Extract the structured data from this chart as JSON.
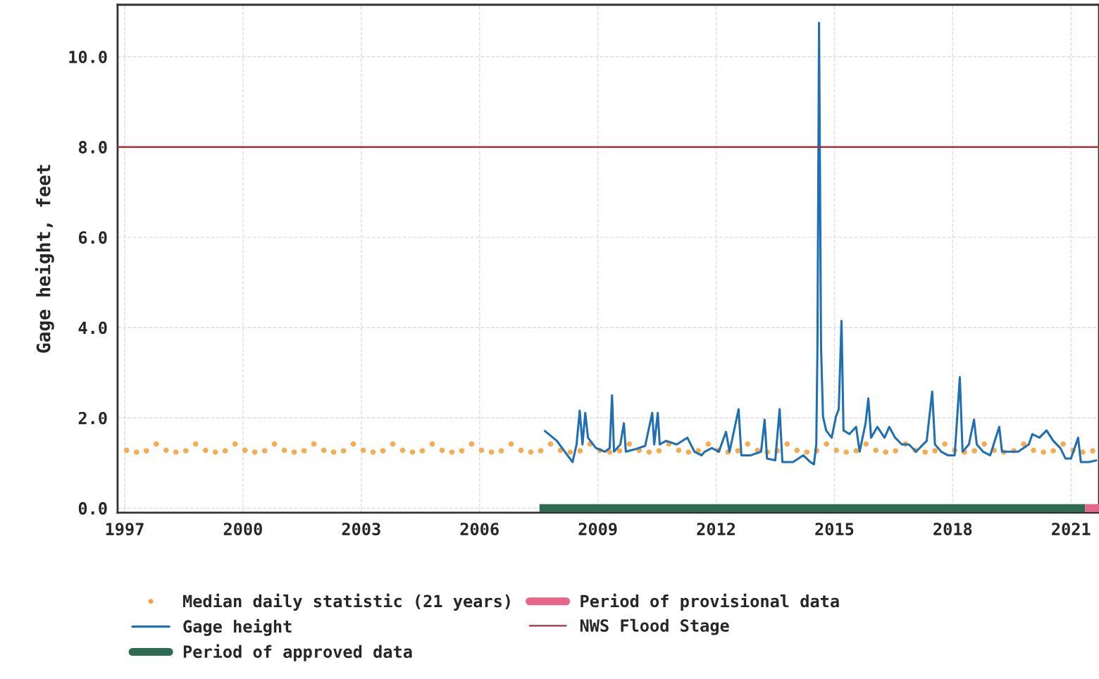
{
  "chart_data": {
    "type": "line",
    "ylabel": "Gage height, feet",
    "xlim": [
      1996.82,
      2021.71
    ],
    "xticks": [
      1997,
      2000,
      2003,
      2006,
      2009,
      2012,
      2015,
      2018,
      2021
    ],
    "ylim": [
      -0.1,
      11.15
    ],
    "yticks": [
      {
        "value": 0,
        "label": "0.0"
      },
      {
        "value": 2,
        "label": "2.0"
      },
      {
        "value": 4,
        "label": "4.0"
      },
      {
        "value": 6,
        "label": "6.0"
      },
      {
        "value": 8,
        "label": "8.0"
      },
      {
        "value": 10,
        "label": "10.0"
      }
    ],
    "grid": true,
    "legend": "bottom",
    "series": [
      {
        "name": "Median daily statistic (21 years)",
        "type": "scatter",
        "color": "#f4a23c",
        "marker": "circle",
        "x": [
          1997.05,
          1997.3,
          1997.55,
          1997.8,
          1998.05,
          1998.3,
          1998.55,
          1998.8,
          1999.05,
          1999.3,
          1999.55,
          1999.8,
          2000.05,
          2000.3,
          2000.55,
          2000.8,
          2001.05,
          2001.3,
          2001.55,
          2001.8,
          2002.05,
          2002.3,
          2002.55,
          2002.8,
          2003.05,
          2003.3,
          2003.55,
          2003.8,
          2004.05,
          2004.3,
          2004.55,
          2004.8,
          2005.05,
          2005.3,
          2005.55,
          2005.8,
          2006.05,
          2006.3,
          2006.55,
          2006.8,
          2007.05,
          2007.3,
          2007.55,
          2007.8,
          2008.05,
          2008.3,
          2008.55,
          2008.8,
          2009.05,
          2009.3,
          2009.55,
          2009.8,
          2010.05,
          2010.3,
          2010.55,
          2010.8,
          2011.05,
          2011.3,
          2011.55,
          2011.8,
          2012.05,
          2012.3,
          2012.55,
          2012.8,
          2013.05,
          2013.3,
          2013.55,
          2013.8,
          2014.05,
          2014.3,
          2014.55,
          2014.8,
          2015.05,
          2015.3,
          2015.55,
          2015.8,
          2016.05,
          2016.3,
          2016.55,
          2016.8,
          2017.05,
          2017.3,
          2017.55,
          2017.8,
          2018.05,
          2018.3,
          2018.55,
          2018.8,
          2019.05,
          2019.3,
          2019.55,
          2019.8,
          2020.05,
          2020.3,
          2020.55,
          2020.8,
          2021.05,
          2021.3,
          2021.55
        ],
        "values": [
          1.28,
          1.24,
          1.27,
          1.42,
          1.28,
          1.24,
          1.27,
          1.42,
          1.28,
          1.24,
          1.27,
          1.42,
          1.28,
          1.24,
          1.27,
          1.42,
          1.28,
          1.24,
          1.27,
          1.42,
          1.28,
          1.24,
          1.27,
          1.42,
          1.28,
          1.24,
          1.27,
          1.42,
          1.28,
          1.24,
          1.27,
          1.42,
          1.28,
          1.24,
          1.27,
          1.42,
          1.28,
          1.24,
          1.27,
          1.42,
          1.28,
          1.24,
          1.27,
          1.42,
          1.28,
          1.24,
          1.27,
          1.42,
          1.28,
          1.24,
          1.27,
          1.42,
          1.28,
          1.24,
          1.27,
          1.42,
          1.28,
          1.24,
          1.27,
          1.42,
          1.28,
          1.24,
          1.27,
          1.42,
          1.28,
          1.24,
          1.27,
          1.42,
          1.28,
          1.24,
          1.27,
          1.42,
          1.28,
          1.24,
          1.27,
          1.42,
          1.28,
          1.24,
          1.27,
          1.42,
          1.28,
          1.24,
          1.27,
          1.42,
          1.28,
          1.24,
          1.27,
          1.42,
          1.28,
          1.24,
          1.27,
          1.42,
          1.28,
          1.24,
          1.27,
          1.42,
          1.28,
          1.24,
          1.27
        ]
      },
      {
        "name": "Gage height",
        "color": "#1f6fb2",
        "x": [
          2007.64,
          2007.96,
          2008.23,
          2008.36,
          2008.46,
          2008.54,
          2008.61,
          2008.68,
          2008.75,
          2008.95,
          2009.18,
          2009.3,
          2009.36,
          2009.41,
          2009.57,
          2009.66,
          2009.71,
          2009.93,
          2010.2,
          2010.38,
          2010.43,
          2010.52,
          2010.57,
          2010.73,
          2011.0,
          2011.27,
          2011.45,
          2011.63,
          2011.71,
          2011.89,
          2012.07,
          2012.25,
          2012.34,
          2012.57,
          2012.64,
          2012.88,
          2013.14,
          2013.23,
          2013.29,
          2013.5,
          2013.61,
          2013.68,
          2013.95,
          2014.21,
          2014.39,
          2014.48,
          2014.54,
          2014.57,
          2014.61,
          2014.66,
          2014.71,
          2014.79,
          2014.93,
          2015.04,
          2015.11,
          2015.18,
          2015.23,
          2015.38,
          2015.55,
          2015.64,
          2015.79,
          2015.86,
          2015.93,
          2016.09,
          2016.27,
          2016.39,
          2016.54,
          2016.71,
          2016.89,
          2017.07,
          2017.34,
          2017.48,
          2017.55,
          2017.71,
          2017.88,
          2018.05,
          2018.18,
          2018.25,
          2018.41,
          2018.54,
          2018.61,
          2018.77,
          2018.95,
          2019.18,
          2019.25,
          2019.43,
          2019.66,
          2019.93,
          2020.02,
          2020.2,
          2020.38,
          2020.55,
          2020.73,
          2020.86,
          2021.0,
          2021.18,
          2021.25,
          2021.45,
          2021.66
        ],
        "values": [
          1.72,
          1.49,
          1.17,
          1.02,
          1.41,
          2.16,
          1.41,
          2.11,
          1.56,
          1.33,
          1.25,
          1.33,
          2.5,
          1.25,
          1.41,
          1.88,
          1.25,
          1.3,
          1.38,
          2.11,
          1.41,
          2.11,
          1.41,
          1.49,
          1.41,
          1.56,
          1.25,
          1.17,
          1.25,
          1.33,
          1.25,
          1.69,
          1.25,
          2.19,
          1.17,
          1.17,
          1.25,
          1.96,
          1.1,
          1.06,
          2.19,
          1.02,
          1.02,
          1.17,
          1.02,
          0.97,
          1.41,
          3.6,
          10.75,
          3.6,
          2.03,
          1.72,
          1.56,
          2.03,
          2.19,
          4.15,
          1.72,
          1.64,
          1.8,
          1.25,
          1.88,
          2.43,
          1.56,
          1.8,
          1.56,
          1.8,
          1.56,
          1.41,
          1.41,
          1.25,
          1.49,
          2.58,
          1.41,
          1.25,
          1.17,
          1.17,
          2.9,
          1.25,
          1.41,
          1.96,
          1.41,
          1.25,
          1.17,
          1.8,
          1.25,
          1.25,
          1.25,
          1.41,
          1.64,
          1.56,
          1.72,
          1.49,
          1.33,
          1.1,
          1.1,
          1.56,
          1.02,
          1.02,
          1.06
        ]
      },
      {
        "name": "Period of approved data",
        "color": "#2e6b52",
        "x": [
          2007.52,
          2021.36
        ],
        "values": [
          0,
          0
        ]
      },
      {
        "name": "Period of provisional data",
        "color": "#e8668a",
        "x": [
          2021.36,
          2021.71
        ],
        "values": [
          0,
          0
        ]
      }
    ],
    "ref_lines": [
      {
        "axis": "y",
        "value": 8,
        "label": "NWS Flood Stage",
        "color": "#a3343f"
      }
    ]
  }
}
